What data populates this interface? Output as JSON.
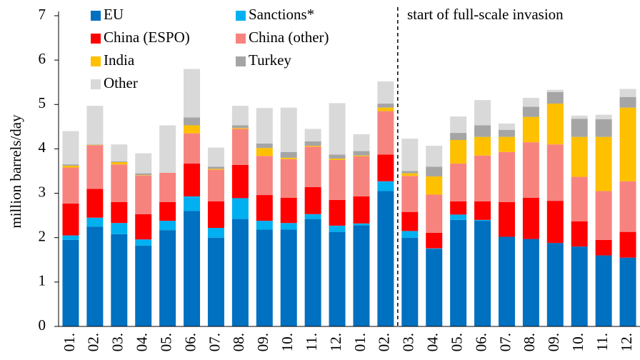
{
  "chart_data": {
    "type": "stacked_bar",
    "y_label": "million barrels/day",
    "annotation": "start of full-scale invasion",
    "categories": [
      "01.",
      "02.",
      "03.",
      "04.",
      "05.",
      "06.",
      "07.",
      "08.",
      "09.",
      "10.",
      "11.",
      "12.",
      "01.",
      "02.",
      "03.",
      "04.",
      "05.",
      "06.",
      "07.",
      "08.",
      "09.",
      "10.",
      "11.",
      "12."
    ],
    "ylim": [
      0,
      7
    ],
    "yticks": [
      0,
      1,
      2,
      3,
      4,
      5,
      6,
      7
    ],
    "series": [
      {
        "name": "EU",
        "color": "#0070c0",
        "values": [
          1.95,
          2.25,
          2.08,
          1.82,
          2.17,
          2.6,
          2.0,
          2.42,
          2.18,
          2.18,
          2.42,
          2.13,
          2.28,
          3.05,
          2.0,
          1.75,
          2.4,
          2.38,
          2.02,
          1.97,
          1.88,
          1.8,
          1.6,
          1.55
        ]
      },
      {
        "name": "Sanctions*",
        "color": "#00b0f0",
        "values": [
          0.1,
          0.2,
          0.25,
          0.14,
          0.21,
          0.33,
          0.22,
          0.47,
          0.2,
          0.15,
          0.11,
          0.14,
          0.04,
          0.22,
          0.15,
          0.01,
          0.12,
          0.02,
          0,
          0,
          0,
          0,
          0,
          0
        ]
      },
      {
        "name": "China (ESPO)",
        "color": "#ff0000",
        "values": [
          0.72,
          0.65,
          0.47,
          0.57,
          0.42,
          0.74,
          0.6,
          0.75,
          0.58,
          0.57,
          0.61,
          0.58,
          0.61,
          0.6,
          0.43,
          0.35,
          0.3,
          0.42,
          0.78,
          0.93,
          0.95,
          0.57,
          0.35,
          0.58
        ]
      },
      {
        "name": "China (other)",
        "color": "#f7837f",
        "values": [
          0.81,
          0.98,
          0.85,
          0.87,
          0.66,
          0.68,
          0.71,
          0.81,
          0.88,
          0.87,
          0.91,
          0.9,
          0.9,
          0.98,
          0.81,
          0.86,
          0.85,
          1.03,
          1.13,
          1.25,
          1.27,
          1.0,
          1.1,
          1.14
        ]
      },
      {
        "name": "India",
        "color": "#ffc000",
        "values": [
          0.04,
          0.01,
          0.05,
          0.01,
          0,
          0.18,
          0.02,
          0.02,
          0.18,
          0.03,
          0.02,
          0.03,
          0.02,
          0.08,
          0.06,
          0.41,
          0.53,
          0.42,
          0.34,
          0.57,
          0.92,
          0.9,
          1.22,
          1.66
        ]
      },
      {
        "name": "Turkey",
        "color": "#a5a5a5",
        "values": [
          0.03,
          0.01,
          0.02,
          0.04,
          0,
          0.18,
          0.05,
          0.06,
          0.1,
          0.13,
          0.1,
          0.09,
          0.1,
          0.09,
          0.05,
          0.22,
          0.16,
          0.26,
          0.16,
          0.23,
          0.26,
          0.41,
          0.4,
          0.24
        ]
      },
      {
        "name": "Other",
        "color": "#d9d9d9",
        "values": [
          0.75,
          0.87,
          0.38,
          0.45,
          1.07,
          1.09,
          0.43,
          0.44,
          0.8,
          1.0,
          0.28,
          1.16,
          0.38,
          0.5,
          0.73,
          0.47,
          0.37,
          0.57,
          0.14,
          0.2,
          0.05,
          0.07,
          0.1,
          0.18
        ]
      }
    ]
  }
}
